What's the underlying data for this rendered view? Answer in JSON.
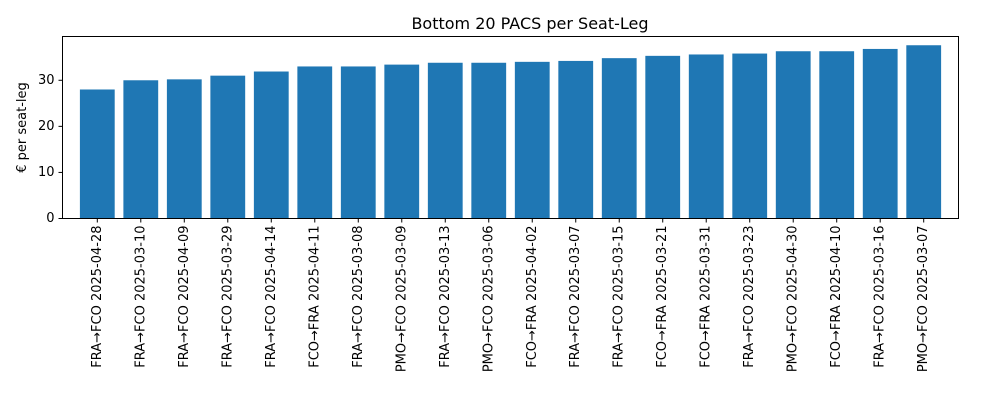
{
  "chart_data": {
    "type": "bar",
    "title": "Bottom 20 PACS per Seat-Leg",
    "xlabel": "",
    "ylabel": "€ per seat-leg",
    "ylim": [
      0,
      39.5
    ],
    "yticks": [
      0,
      10,
      20,
      30
    ],
    "grid": false,
    "bar_color": "#1f77b4",
    "categories": [
      "FRA→FCO 2025-04-28",
      "FRA→FCO 2025-03-10",
      "FRA→FCO 2025-04-09",
      "FRA→FCO 2025-03-29",
      "FRA→FCO 2025-04-14",
      "FCO→FRA 2025-04-11",
      "FRA→FCO 2025-03-08",
      "PMO→FCO 2025-03-09",
      "FRA→FCO 2025-03-13",
      "PMO→FCO 2025-03-06",
      "FCO→FRA 2025-04-02",
      "FRA→FCO 2025-03-07",
      "FRA→FCO 2025-03-15",
      "FCO→FRA 2025-03-21",
      "FCO→FRA 2025-03-31",
      "FRA→FCO 2025-03-23",
      "PMO→FCO 2025-04-30",
      "FCO→FRA 2025-04-10",
      "FRA→FCO 2025-03-16",
      "PMO→FCO 2025-03-07"
    ],
    "values": [
      28.0,
      30.0,
      30.2,
      31.0,
      31.9,
      33.0,
      33.0,
      33.4,
      33.8,
      33.8,
      34.0,
      34.2,
      34.8,
      35.3,
      35.6,
      35.8,
      36.3,
      36.3,
      36.8,
      37.6
    ]
  }
}
